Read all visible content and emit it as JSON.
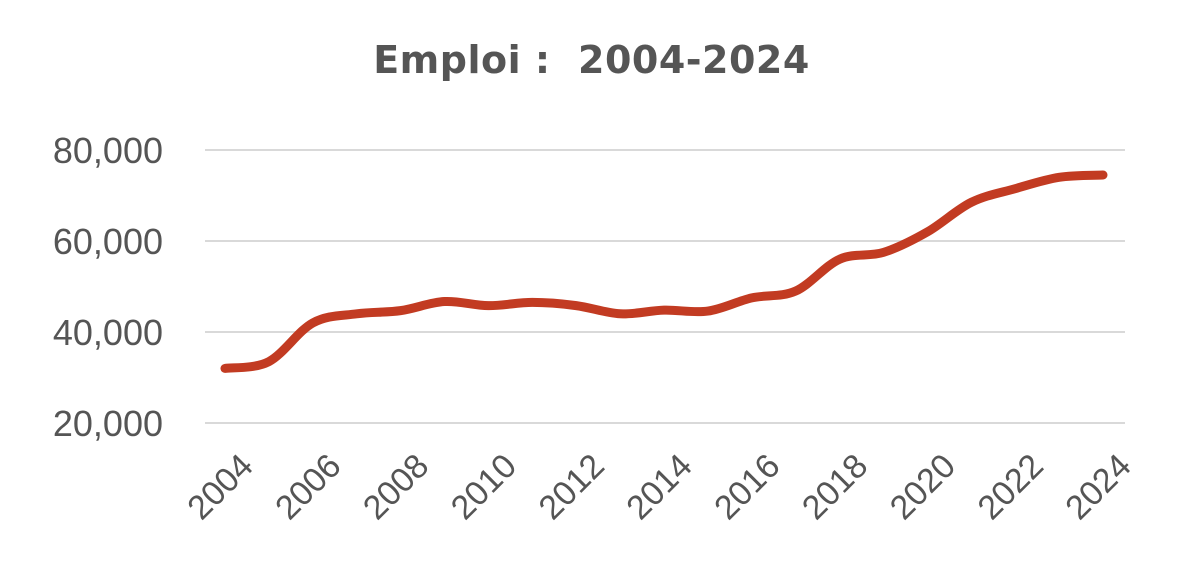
{
  "chart_data": {
    "type": "line",
    "title": "Emploi :  2004-2024",
    "xlabel": "",
    "ylabel": "",
    "x": [
      2004,
      2005,
      2006,
      2007,
      2008,
      2009,
      2010,
      2011,
      2012,
      2013,
      2014,
      2015,
      2016,
      2017,
      2018,
      2019,
      2020,
      2021,
      2022,
      2023,
      2024
    ],
    "x_tick_labels": [
      "2004",
      "2006",
      "2008",
      "2010",
      "2012",
      "2014",
      "2016",
      "2018",
      "2020",
      "2022",
      "2024"
    ],
    "y_tick_labels": [
      "80,000",
      "60,000",
      "40,000",
      "20,000"
    ],
    "ylim": [
      20000,
      80000
    ],
    "grid": true,
    "legend": "none",
    "series": [
      {
        "values": [
          32000,
          33500,
          42000,
          44000,
          44700,
          46700,
          45800,
          46500,
          45800,
          44000,
          44800,
          44600,
          47500,
          49000,
          56000,
          57500,
          62000,
          68500,
          71500,
          74000,
          74500
        ],
        "color": "#c23b22"
      }
    ]
  }
}
